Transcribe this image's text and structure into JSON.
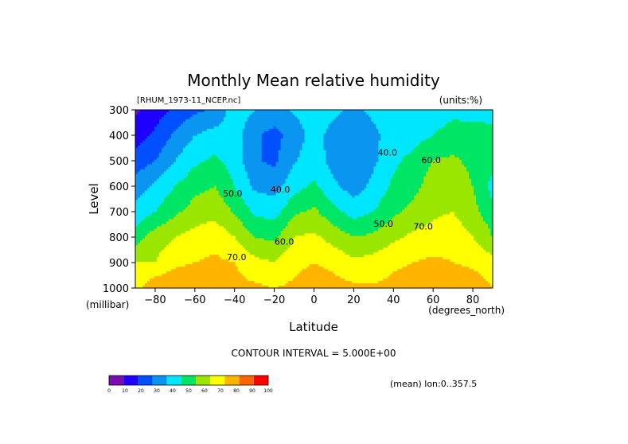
{
  "chart_data": {
    "type": "heatmap",
    "title": "Monthly Mean relative humidity",
    "file_label": "[RHUM_1973-11_NCEP.nc]",
    "units_label": "(units:%)",
    "xlabel": "Latitude",
    "x_units": "(degrees_north)",
    "ylabel": "Level",
    "y_units": "(millibar)",
    "xlim": [
      -90,
      90
    ],
    "ylim": [
      300,
      1000
    ],
    "y_inverted": true,
    "x_ticks": [
      -80,
      -60,
      -40,
      -20,
      0,
      20,
      40,
      60,
      80
    ],
    "y_ticks": [
      300,
      400,
      500,
      600,
      700,
      800,
      900,
      1000
    ],
    "contour_interval_text": "CONTOUR INTERVAL = 5.000E+00",
    "mean_label": "(mean) lon:0..357.5",
    "contour_labels": [
      {
        "text": "40.0",
        "lat": 37,
        "lev": 480
      },
      {
        "text": "40.0",
        "lat": -17,
        "lev": 625
      },
      {
        "text": "50.0",
        "lat": -41,
        "lev": 640
      },
      {
        "text": "50.0",
        "lat": 35,
        "lev": 760
      },
      {
        "text": "60.0",
        "lat": -15,
        "lev": 830
      },
      {
        "text": "60.0",
        "lat": 59,
        "lev": 510
      },
      {
        "text": "70.0",
        "lat": -39,
        "lev": 890
      },
      {
        "text": "70.0",
        "lat": 55,
        "lev": 770
      }
    ],
    "colorbar": {
      "ticks": [
        "0",
        "10",
        "20",
        "30",
        "40",
        "50",
        "60",
        "70",
        "80",
        "90",
        "100"
      ],
      "colors": [
        "#7a0fb0",
        "#1e00ff",
        "#0050ff",
        "#0a96f0",
        "#00e6ff",
        "#00e664",
        "#9be600",
        "#ffff00",
        "#ffb400",
        "#ff6400",
        "#ff0000"
      ]
    },
    "latitudes": [
      -90,
      -80,
      -70,
      -60,
      -50,
      -40,
      -30,
      -20,
      -10,
      0,
      10,
      20,
      30,
      40,
      50,
      60,
      70,
      80,
      90
    ],
    "levels": [
      300,
      400,
      500,
      600,
      700,
      800,
      900,
      1000
    ],
    "values": [
      [
        8,
        15,
        22,
        28,
        31,
        46,
        40,
        38,
        41,
        44,
        42,
        38,
        42,
        45,
        45,
        46,
        48,
        46,
        47
      ],
      [
        16,
        22,
        32,
        40,
        44,
        45,
        32,
        26,
        36,
        43,
        37,
        31,
        38,
        44,
        46,
        50,
        53,
        55,
        52
      ],
      [
        24,
        30,
        40,
        48,
        52,
        46,
        31,
        28,
        39,
        45,
        36,
        30,
        38,
        48,
        53,
        60,
        62,
        57,
        55
      ],
      [
        35,
        42,
        50,
        57,
        60,
        50,
        38,
        36,
        46,
        52,
        42,
        35,
        43,
        52,
        57,
        65,
        68,
        60,
        46
      ],
      [
        43,
        50,
        58,
        64,
        67,
        59,
        48,
        46,
        58,
        62,
        53,
        46,
        50,
        58,
        63,
        68,
        70,
        63,
        54
      ],
      [
        55,
        65,
        70,
        74,
        76,
        70,
        60,
        58,
        70,
        72,
        66,
        60,
        62,
        68,
        72,
        74,
        76,
        70,
        60
      ],
      [
        70,
        70,
        78,
        80,
        82,
        80,
        73,
        70,
        77,
        80,
        77,
        72,
        74,
        78,
        80,
        82,
        80,
        78,
        74
      ],
      [
        76,
        88,
        88,
        86,
        85,
        83,
        82,
        80,
        82,
        86,
        84,
        82,
        81,
        83,
        85,
        88,
        87,
        86,
        80
      ]
    ]
  }
}
